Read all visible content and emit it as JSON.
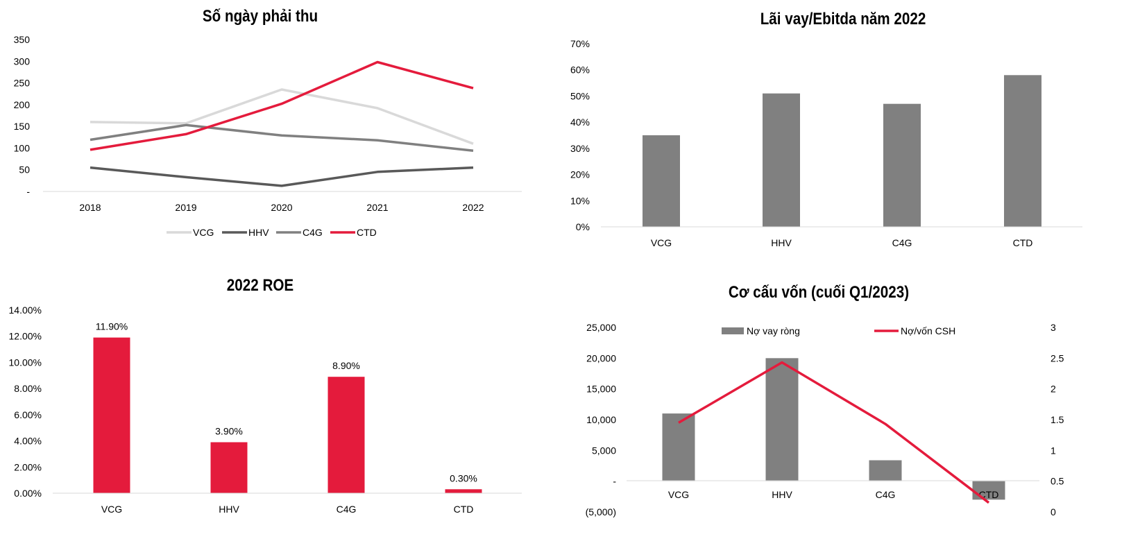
{
  "chart_data": [
    {
      "id": "receivable_days",
      "type": "line",
      "title": "Số ngày phải thu",
      "categories": [
        "2018",
        "2019",
        "2020",
        "2021",
        "2022"
      ],
      "ylim": [
        0,
        350
      ],
      "yticks": [
        {
          "value": 0,
          "label": "-"
        },
        {
          "value": 50,
          "label": "50"
        },
        {
          "value": 100,
          "label": "100"
        },
        {
          "value": 150,
          "label": "150"
        },
        {
          "value": 200,
          "label": "200"
        },
        {
          "value": 250,
          "label": "250"
        },
        {
          "value": 300,
          "label": "300"
        },
        {
          "value": 350,
          "label": "350"
        }
      ],
      "series": [
        {
          "name": "VCG",
          "color": "#d9d9d9",
          "values": [
            160,
            157,
            235,
            192,
            110
          ]
        },
        {
          "name": "HHV",
          "color": "#595959",
          "values": [
            55,
            33,
            13,
            45,
            55
          ]
        },
        {
          "name": "C4G",
          "color": "#808080",
          "values": [
            119,
            153,
            129,
            118,
            94
          ]
        },
        {
          "name": "CTD",
          "color": "#e41b3c",
          "values": [
            96,
            132,
            202,
            298,
            238
          ]
        }
      ],
      "legend": "bottom",
      "grid": false
    },
    {
      "id": "interest_ebitda",
      "type": "bar",
      "title": "Lãi vay/Ebitda năm 2022",
      "categories": [
        "VCG",
        "HHV",
        "C4G",
        "CTD"
      ],
      "values": [
        0.35,
        0.51,
        0.47,
        0.58
      ],
      "color": "#808080",
      "ylim": [
        0,
        0.7
      ],
      "yticks": [
        {
          "value": 0,
          "label": "0%"
        },
        {
          "value": 0.1,
          "label": "10%"
        },
        {
          "value": 0.2,
          "label": "20%"
        },
        {
          "value": 0.3,
          "label": "30%"
        },
        {
          "value": 0.4,
          "label": "40%"
        },
        {
          "value": 0.5,
          "label": "50%"
        },
        {
          "value": 0.6,
          "label": "60%"
        },
        {
          "value": 0.7,
          "label": "70%"
        }
      ],
      "grid": false
    },
    {
      "id": "roe_2022",
      "type": "bar",
      "title": "2022 ROE",
      "categories": [
        "VCG",
        "HHV",
        "C4G",
        "CTD"
      ],
      "values": [
        0.119,
        0.039,
        0.089,
        0.003
      ],
      "data_labels": [
        "11.90%",
        "3.90%",
        "8.90%",
        "0.30%"
      ],
      "color": "#e41b3c",
      "ylim": [
        0,
        0.14
      ],
      "yticks": [
        {
          "value": 0,
          "label": "0.00%"
        },
        {
          "value": 0.02,
          "label": "2.00%"
        },
        {
          "value": 0.04,
          "label": "4.00%"
        },
        {
          "value": 0.06,
          "label": "6.00%"
        },
        {
          "value": 0.08,
          "label": "8.00%"
        },
        {
          "value": 0.1,
          "label": "10.00%"
        },
        {
          "value": 0.12,
          "label": "12.00%"
        },
        {
          "value": 0.14,
          "label": "14.00%"
        }
      ],
      "grid": false
    },
    {
      "id": "capital_structure",
      "type": "bar",
      "title": "Cơ cấu vốn (cuối Q1/2023)",
      "categories": [
        "VCG",
        "HHV",
        "C4G",
        "CTD"
      ],
      "series": [
        {
          "name": "Nợ vay ròng",
          "kind": "bar",
          "axis": "left",
          "color": "#808080",
          "values": [
            11000,
            20000,
            3400,
            -3000
          ]
        },
        {
          "name": "Nợ/vốn CSH",
          "kind": "line",
          "axis": "right",
          "color": "#e41b3c",
          "values": [
            1.45,
            2.43,
            1.43,
            0.15
          ]
        }
      ],
      "ylim": [
        -5000,
        25000
      ],
      "yticks": [
        {
          "value": -5000,
          "label": "(5,000)"
        },
        {
          "value": 0,
          "label": "-"
        },
        {
          "value": 5000,
          "label": "5,000"
        },
        {
          "value": 10000,
          "label": "10,000"
        },
        {
          "value": 15000,
          "label": "15,000"
        },
        {
          "value": 20000,
          "label": "20,000"
        },
        {
          "value": 25000,
          "label": "25,000"
        }
      ],
      "y2lim": [
        0,
        3
      ],
      "y2ticks": [
        {
          "value": 0,
          "label": "0"
        },
        {
          "value": 0.5,
          "label": "0.5"
        },
        {
          "value": 1,
          "label": "1"
        },
        {
          "value": 1.5,
          "label": "1.5"
        },
        {
          "value": 2,
          "label": "2"
        },
        {
          "value": 2.5,
          "label": "2.5"
        },
        {
          "value": 3,
          "label": "3"
        }
      ],
      "legend": "top",
      "grid": false
    }
  ]
}
